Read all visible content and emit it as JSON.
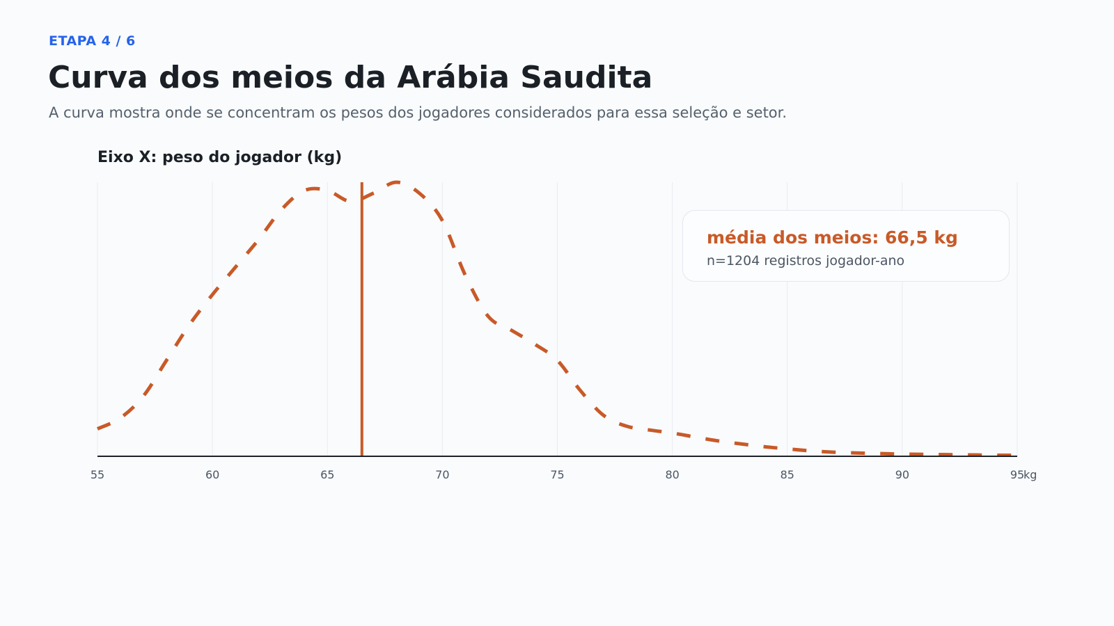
{
  "header": {
    "step": "ETAPA 4 / 6",
    "title": "Curva dos meios da Arábia Saudita",
    "subtitle": "A curva mostra onde se concentram os pesos dos jogadores considerados para essa seleção e setor."
  },
  "annotation": {
    "mean_text": "média dos meios: 66,5 kg",
    "count_text": "n=1204 registros jogador-ano"
  },
  "colors": {
    "accent": "#c85a28",
    "step": "#2563eb",
    "gridline": "#e9ecef",
    "axis": "#1b2026"
  },
  "chart_data": {
    "type": "line",
    "xlabel": "Eixo X: peso do jogador (kg)",
    "ylabel": "",
    "x_unit": "kg",
    "xlim": [
      55,
      95
    ],
    "ylim": [
      0,
      1
    ],
    "grid": "vertical",
    "x_ticks": [
      "55",
      "60",
      "65",
      "70",
      "75",
      "80",
      "85",
      "90",
      "95"
    ],
    "mean": 66.5,
    "series": [
      {
        "style": "dashed",
        "x": [
          55,
          56,
          57,
          58,
          59,
          60,
          61,
          62,
          63,
          64,
          65,
          66,
          67,
          68,
          69,
          70,
          71,
          72,
          73,
          74,
          75,
          76,
          77,
          78,
          79,
          80,
          81,
          82,
          83,
          84,
          85,
          86,
          87,
          88,
          89,
          90,
          91,
          92,
          93,
          94,
          95
        ],
        "values": [
          0.1,
          0.14,
          0.22,
          0.35,
          0.48,
          0.59,
          0.69,
          0.79,
          0.9,
          0.97,
          0.97,
          0.93,
          0.96,
          1.0,
          0.96,
          0.86,
          0.66,
          0.51,
          0.46,
          0.41,
          0.35,
          0.24,
          0.15,
          0.11,
          0.096,
          0.085,
          0.07,
          0.056,
          0.045,
          0.035,
          0.027,
          0.02,
          0.015,
          0.012,
          0.01,
          0.008,
          0.007,
          0.006,
          0.005,
          0.004,
          0.004
        ]
      }
    ]
  }
}
